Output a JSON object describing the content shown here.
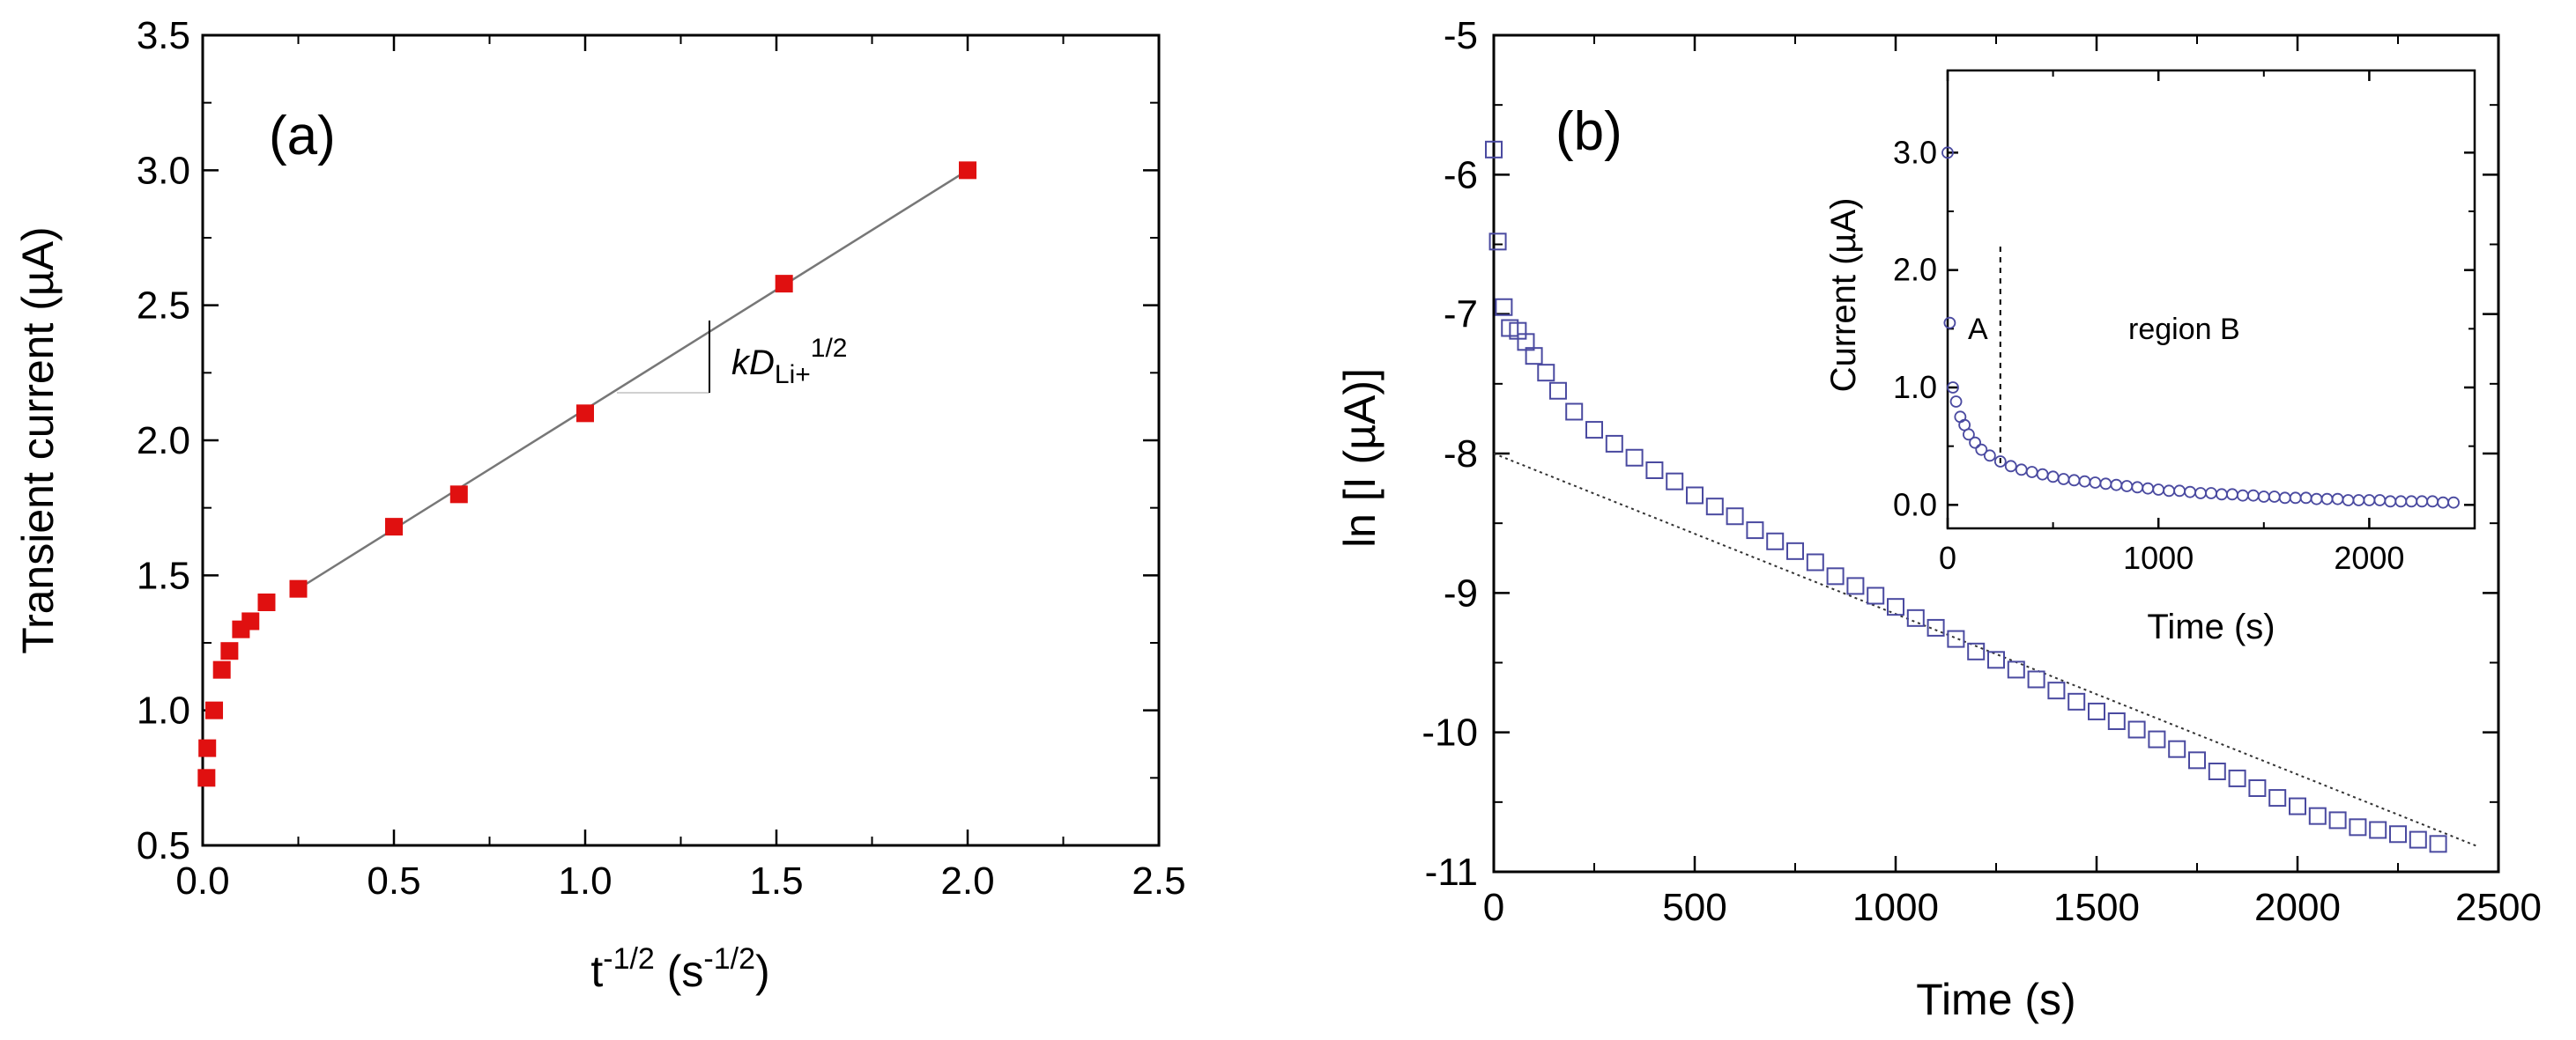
{
  "chart_data": [
    {
      "id": "panel-a",
      "type": "scatter",
      "panel_label": "(a)",
      "xlabel": "t^-1/2 (s^-1/2)",
      "xlabel_parts": {
        "base": "t",
        "exp1": "-1/2",
        "mid": " (s",
        "exp2": "-1/2",
        "end": ")"
      },
      "ylabel": "Transient current (µA)",
      "xlim": [
        0.0,
        2.5
      ],
      "ylim": [
        0.5,
        3.5
      ],
      "xticks": [
        "0.0",
        "0.5",
        "1.0",
        "1.5",
        "2.0",
        "2.5"
      ],
      "yticks": [
        "0.5",
        "1.0",
        "1.5",
        "2.0",
        "2.5",
        "3.0",
        "3.5"
      ],
      "marker_color": "#e01010",
      "series": [
        {
          "name": "transient current",
          "points": [
            [
              0.01,
              0.75
            ],
            [
              0.012,
              0.86
            ],
            [
              0.03,
              1.0
            ],
            [
              0.05,
              1.15
            ],
            [
              0.07,
              1.22
            ],
            [
              0.1,
              1.3
            ],
            [
              0.125,
              1.33
            ],
            [
              0.167,
              1.4
            ],
            [
              0.25,
              1.45
            ],
            [
              0.5,
              1.68
            ],
            [
              0.67,
              1.8
            ],
            [
              1.0,
              2.1
            ],
            [
              1.52,
              2.58
            ],
            [
              2.0,
              3.0
            ]
          ]
        }
      ],
      "fit_line": {
        "x": [
          0.25,
          2.0
        ],
        "y": [
          1.45,
          3.0
        ]
      },
      "annotation": {
        "text": "kD",
        "subscript": "Li+",
        "superscript": "1/2"
      }
    },
    {
      "id": "panel-b",
      "type": "scatter",
      "panel_label": "(b)",
      "xlabel": "Time (s)",
      "ylabel": "ln [I (µA)]",
      "xlim": [
        0,
        2500
      ],
      "ylim": [
        -11,
        -5
      ],
      "xticks": [
        "0",
        "500",
        "1000",
        "1500",
        "2000",
        "2500"
      ],
      "yticks": [
        "-11",
        "-10",
        "-9",
        "-8",
        "-7",
        "-6",
        "-5"
      ],
      "marker_color": "#4a4aa0",
      "series": [
        {
          "name": "ln I",
          "points": [
            [
              0,
              -5.82
            ],
            [
              10,
              -6.48
            ],
            [
              25,
              -6.95
            ],
            [
              40,
              -7.1
            ],
            [
              60,
              -7.12
            ],
            [
              80,
              -7.2
            ],
            [
              100,
              -7.3
            ],
            [
              130,
              -7.42
            ],
            [
              160,
              -7.55
            ],
            [
              200,
              -7.7
            ],
            [
              250,
              -7.83
            ],
            [
              300,
              -7.93
            ],
            [
              350,
              -8.03
            ],
            [
              400,
              -8.12
            ],
            [
              450,
              -8.2
            ],
            [
              500,
              -8.3
            ],
            [
              550,
              -8.38
            ],
            [
              600,
              -8.45
            ],
            [
              650,
              -8.55
            ],
            [
              700,
              -8.63
            ],
            [
              750,
              -8.7
            ],
            [
              800,
              -8.78
            ],
            [
              850,
              -8.88
            ],
            [
              900,
              -8.95
            ],
            [
              950,
              -9.02
            ],
            [
              1000,
              -9.1
            ],
            [
              1050,
              -9.18
            ],
            [
              1100,
              -9.25
            ],
            [
              1150,
              -9.33
            ],
            [
              1200,
              -9.42
            ],
            [
              1250,
              -9.48
            ],
            [
              1300,
              -9.55
            ],
            [
              1350,
              -9.62
            ],
            [
              1400,
              -9.7
            ],
            [
              1450,
              -9.78
            ],
            [
              1500,
              -9.85
            ],
            [
              1550,
              -9.92
            ],
            [
              1600,
              -9.98
            ],
            [
              1650,
              -10.05
            ],
            [
              1700,
              -10.12
            ],
            [
              1750,
              -10.2
            ],
            [
              1800,
              -10.28
            ],
            [
              1850,
              -10.33
            ],
            [
              1900,
              -10.4
            ],
            [
              1950,
              -10.47
            ],
            [
              2000,
              -10.53
            ],
            [
              2050,
              -10.6
            ],
            [
              2100,
              -10.63
            ],
            [
              2150,
              -10.68
            ],
            [
              2200,
              -10.7
            ],
            [
              2250,
              -10.73
            ],
            [
              2300,
              -10.77
            ],
            [
              2350,
              -10.8
            ]
          ]
        }
      ],
      "fit_line": {
        "x": [
          0,
          2450
        ],
        "y": [
          -8.0,
          -10.82
        ]
      }
    },
    {
      "id": "panel-b-inset",
      "type": "scatter",
      "xlabel": "Time (s)",
      "ylabel": "Current (µA)",
      "xlim": [
        0,
        2500
      ],
      "ylim": [
        -0.2,
        3.7
      ],
      "xticks": [
        "0",
        "1000",
        "2000"
      ],
      "yticks": [
        "0.0",
        "1.0",
        "2.0",
        "3.0"
      ],
      "marker_color": "#4a4aa0",
      "region_a_label": "A",
      "region_b_label": "region B",
      "region_divider_x": 250,
      "series": [
        {
          "name": "current",
          "points": [
            [
              0,
              3.0
            ],
            [
              10,
              1.55
            ],
            [
              25,
              1.0
            ],
            [
              40,
              0.88
            ],
            [
              60,
              0.75
            ],
            [
              80,
              0.68
            ],
            [
              100,
              0.6
            ],
            [
              130,
              0.53
            ],
            [
              160,
              0.47
            ],
            [
              200,
              0.42
            ],
            [
              250,
              0.37
            ],
            [
              300,
              0.33
            ],
            [
              350,
              0.3
            ],
            [
              400,
              0.28
            ],
            [
              450,
              0.26
            ],
            [
              500,
              0.24
            ],
            [
              550,
              0.22
            ],
            [
              600,
              0.21
            ],
            [
              650,
              0.2
            ],
            [
              700,
              0.19
            ],
            [
              750,
              0.18
            ],
            [
              800,
              0.17
            ],
            [
              850,
              0.16
            ],
            [
              900,
              0.15
            ],
            [
              950,
              0.14
            ],
            [
              1000,
              0.13
            ],
            [
              1050,
              0.12
            ],
            [
              1100,
              0.12
            ],
            [
              1150,
              0.11
            ],
            [
              1200,
              0.1
            ],
            [
              1250,
              0.1
            ],
            [
              1300,
              0.09
            ],
            [
              1350,
              0.09
            ],
            [
              1400,
              0.08
            ],
            [
              1450,
              0.08
            ],
            [
              1500,
              0.07
            ],
            [
              1550,
              0.07
            ],
            [
              1600,
              0.06
            ],
            [
              1650,
              0.06
            ],
            [
              1700,
              0.06
            ],
            [
              1750,
              0.05
            ],
            [
              1800,
              0.05
            ],
            [
              1850,
              0.05
            ],
            [
              1900,
              0.04
            ],
            [
              1950,
              0.04
            ],
            [
              2000,
              0.04
            ],
            [
              2050,
              0.04
            ],
            [
              2100,
              0.03
            ],
            [
              2150,
              0.03
            ],
            [
              2200,
              0.03
            ],
            [
              2250,
              0.03
            ],
            [
              2300,
              0.03
            ],
            [
              2350,
              0.02
            ],
            [
              2400,
              0.02
            ]
          ]
        }
      ]
    }
  ]
}
